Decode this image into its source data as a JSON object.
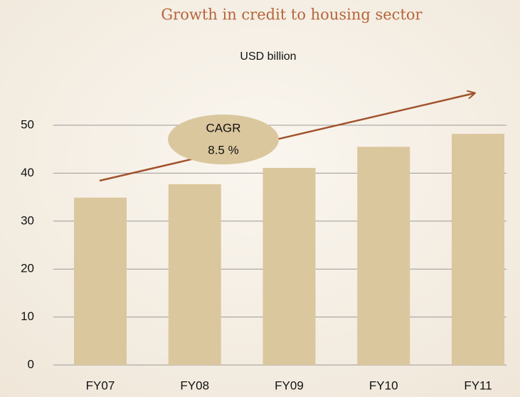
{
  "chart_data": {
    "type": "bar",
    "title": "Growth in credit to housing sector",
    "subtitle": "USD billion",
    "annotations": [
      "CAGR",
      "8.5 %"
    ],
    "categories": [
      "FY07",
      "FY08",
      "FY09",
      "FY10",
      "FY11"
    ],
    "values": [
      34.9,
      37.7,
      41.1,
      45.5,
      48.2
    ],
    "color": "#dbc79d",
    "ylim": [
      0,
      50
    ],
    "yticks": [
      0,
      10,
      20,
      30,
      40,
      50
    ],
    "grid": true
  }
}
